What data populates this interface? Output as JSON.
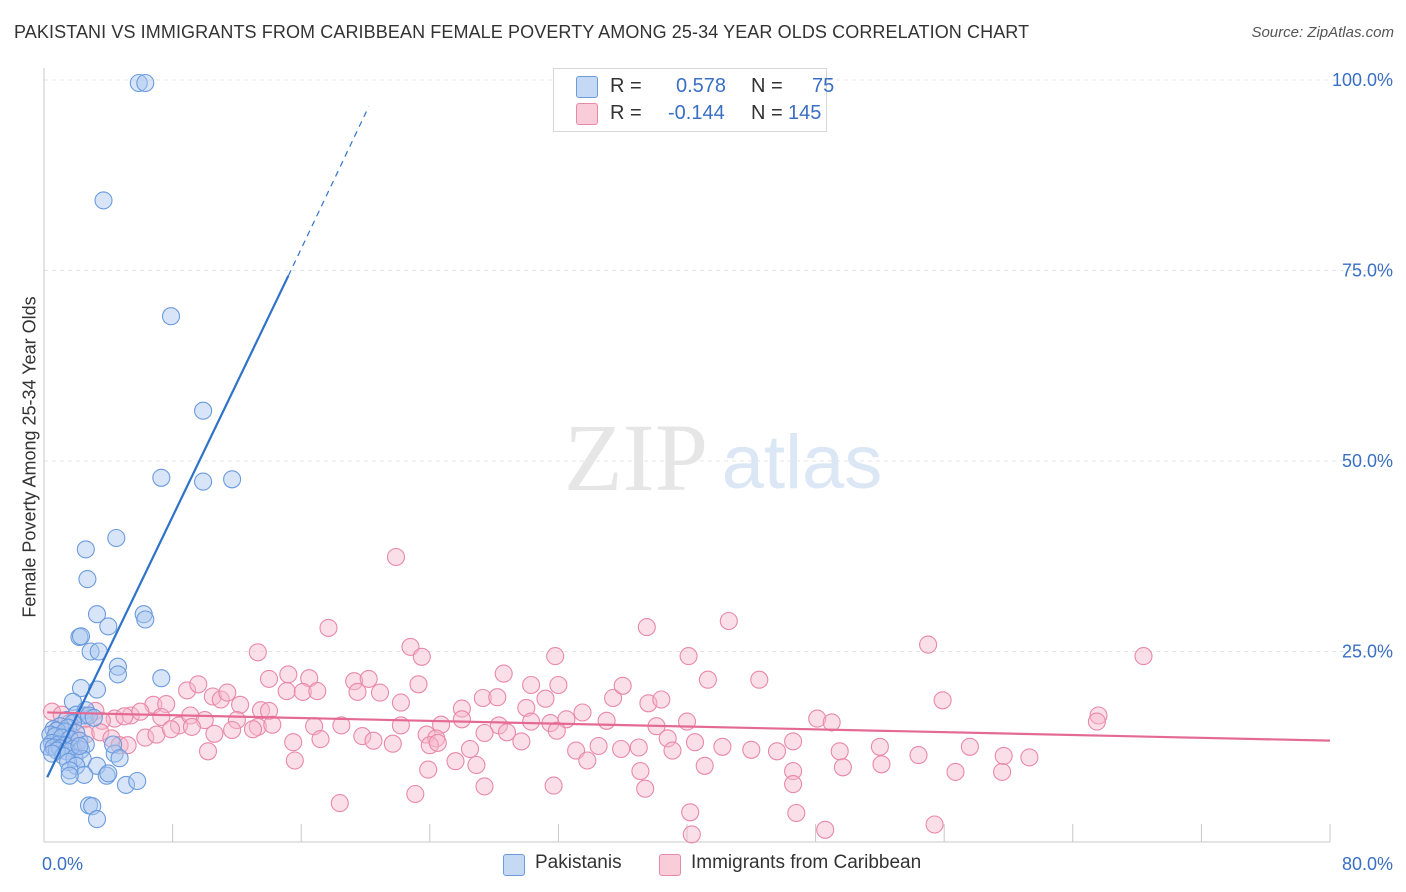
{
  "title": "PAKISTANI VS IMMIGRANTS FROM CARIBBEAN FEMALE POVERTY AMONG 25-34 YEAR OLDS CORRELATION CHART",
  "source": "Source: ZipAtlas.com",
  "watermark": {
    "zip": "ZIP",
    "atlas": "atlas"
  },
  "legend": {
    "r_label": "R =",
    "n_label": "N =",
    "series": [
      {
        "name": "Pakistanis",
        "r": "0.578",
        "n": "75",
        "color": "#a8c6ef",
        "stroke": "#6b9bdd"
      },
      {
        "name": "Immigrants from Caribbean",
        "r": "-0.144",
        "n": "145",
        "color": "#f6b8cb",
        "stroke": "#e889a8"
      }
    ]
  },
  "chart_data": {
    "type": "scatter",
    "title": "PAKISTANI VS IMMIGRANTS FROM CARIBBEAN FEMALE POVERTY AMONG 25-34 YEAR OLDS CORRELATION CHART",
    "xlabel": "",
    "ylabel": "Female Poverty Among 25-34 Year Olds",
    "xlim": [
      0,
      80
    ],
    "ylim": [
      0,
      100
    ],
    "x_tick_labels": [
      "0.0%",
      "80.0%"
    ],
    "y_tick_labels": [
      "25.0%",
      "50.0%",
      "75.0%",
      "100.0%"
    ],
    "y_ticks": [
      25,
      50,
      75,
      100
    ],
    "series": [
      {
        "name": "Pakistanis",
        "color": "#a8c6ef",
        "stroke": "#6b9bdd",
        "line_color": "#2f72c9",
        "trend": {
          "x0": 0.2,
          "y0": 8.5,
          "x1": 15.2,
          "y1": 74.3,
          "dash_to_x": 20.2,
          "dash_to_y": 96.5
        },
        "points": [
          [
            5.9,
            99.6
          ],
          [
            6.3,
            99.6
          ],
          [
            3.7,
            84.2
          ],
          [
            7.9,
            69.0
          ],
          [
            9.9,
            56.6
          ],
          [
            7.3,
            47.8
          ],
          [
            9.9,
            47.3
          ],
          [
            11.7,
            47.6
          ],
          [
            2.6,
            38.4
          ],
          [
            4.5,
            39.9
          ],
          [
            2.7,
            34.5
          ],
          [
            3.3,
            29.9
          ],
          [
            6.2,
            29.9
          ],
          [
            6.3,
            29.2
          ],
          [
            2.2,
            26.9
          ],
          [
            2.3,
            27.0
          ],
          [
            4.0,
            28.3
          ],
          [
            2.9,
            25.0
          ],
          [
            3.4,
            25.0
          ],
          [
            4.6,
            23.0
          ],
          [
            4.6,
            22.0
          ],
          [
            7.3,
            21.5
          ],
          [
            2.3,
            20.2
          ],
          [
            3.3,
            20.0
          ],
          [
            1.8,
            18.4
          ],
          [
            2.6,
            17.3
          ],
          [
            2.0,
            16.7
          ],
          [
            2.5,
            16.6
          ],
          [
            2.8,
            16.6
          ],
          [
            1.4,
            16.0
          ],
          [
            1.8,
            15.6
          ],
          [
            3.1,
            16.3
          ],
          [
            1.0,
            15.2
          ],
          [
            1.5,
            15.0
          ],
          [
            0.6,
            14.8
          ],
          [
            0.8,
            14.6
          ],
          [
            1.3,
            14.5
          ],
          [
            2.0,
            14.3
          ],
          [
            0.4,
            14.1
          ],
          [
            0.7,
            13.9
          ],
          [
            1.1,
            13.7
          ],
          [
            1.6,
            13.5
          ],
          [
            2.2,
            13.3
          ],
          [
            0.5,
            13.0
          ],
          [
            0.9,
            12.8
          ],
          [
            1.3,
            12.7
          ],
          [
            0.3,
            12.5
          ],
          [
            0.6,
            12.4
          ],
          [
            1.0,
            12.3
          ],
          [
            1.8,
            12.2
          ],
          [
            0.8,
            12.0
          ],
          [
            1.4,
            11.9
          ],
          [
            2.3,
            12.1
          ],
          [
            2.6,
            12.8
          ],
          [
            1.2,
            11.3
          ],
          [
            1.9,
            11.0
          ],
          [
            2.4,
            10.9
          ],
          [
            0.5,
            11.6
          ],
          [
            1.5,
            10.5
          ],
          [
            2.0,
            10.0
          ],
          [
            3.3,
            10.0
          ],
          [
            4.4,
            11.6
          ],
          [
            4.3,
            12.8
          ],
          [
            4.7,
            11.0
          ],
          [
            1.6,
            9.4
          ],
          [
            2.5,
            8.8
          ],
          [
            3.9,
            8.7
          ],
          [
            1.6,
            8.7
          ],
          [
            4.0,
            9.0
          ],
          [
            5.1,
            7.5
          ],
          [
            5.8,
            8.0
          ],
          [
            2.8,
            4.8
          ],
          [
            3.0,
            4.7
          ],
          [
            3.3,
            3.0
          ],
          [
            2.2,
            12.6
          ]
        ]
      },
      {
        "name": "Immigrants from Caribbean",
        "color": "#f6b8cb",
        "stroke": "#e889a8",
        "line_color": "#e46a95",
        "trend": {
          "x0": 0.2,
          "y0": 17.0,
          "x1": 80.0,
          "y1": 13.3
        },
        "points": [
          [
            21.9,
            37.4
          ],
          [
            22.8,
            25.6
          ],
          [
            17.7,
            28.1
          ],
          [
            37.5,
            28.2
          ],
          [
            42.6,
            29.0
          ],
          [
            55.0,
            25.9
          ],
          [
            68.4,
            24.4
          ],
          [
            13.3,
            24.9
          ],
          [
            23.5,
            24.3
          ],
          [
            31.8,
            24.4
          ],
          [
            40.1,
            24.4
          ],
          [
            14.0,
            21.4
          ],
          [
            15.2,
            22.0
          ],
          [
            16.5,
            21.5
          ],
          [
            19.3,
            21.1
          ],
          [
            20.2,
            21.4
          ],
          [
            23.3,
            20.7
          ],
          [
            28.6,
            22.1
          ],
          [
            30.3,
            20.6
          ],
          [
            41.3,
            21.3
          ],
          [
            44.5,
            21.3
          ],
          [
            3.2,
            17.2
          ],
          [
            4.4,
            16.2
          ],
          [
            5.4,
            16.6
          ],
          [
            6.8,
            18.0
          ],
          [
            7.6,
            18.1
          ],
          [
            8.9,
            19.9
          ],
          [
            9.6,
            20.7
          ],
          [
            10.5,
            19.1
          ],
          [
            11.0,
            18.7
          ],
          [
            11.4,
            19.6
          ],
          [
            12.2,
            18.0
          ],
          [
            13.5,
            17.3
          ],
          [
            14.0,
            17.2
          ],
          [
            15.1,
            19.8
          ],
          [
            16.1,
            19.7
          ],
          [
            17.0,
            19.8
          ],
          [
            19.5,
            19.7
          ],
          [
            22.2,
            18.3
          ],
          [
            26.0,
            17.5
          ],
          [
            27.3,
            18.9
          ],
          [
            28.2,
            19.0
          ],
          [
            30.0,
            17.6
          ],
          [
            31.2,
            18.8
          ],
          [
            32.0,
            20.6
          ],
          [
            35.4,
            18.9
          ],
          [
            36.0,
            20.5
          ],
          [
            37.6,
            18.2
          ],
          [
            38.4,
            18.7
          ],
          [
            55.9,
            18.6
          ],
          [
            33.5,
            17.0
          ],
          [
            20.9,
            19.6
          ],
          [
            0.5,
            17.1
          ],
          [
            1.1,
            16.7
          ],
          [
            1.6,
            15.6
          ],
          [
            2.5,
            16.1
          ],
          [
            3.6,
            15.9
          ],
          [
            5.0,
            16.5
          ],
          [
            6.0,
            17.1
          ],
          [
            7.3,
            16.4
          ],
          [
            8.4,
            15.3
          ],
          [
            9.1,
            16.6
          ],
          [
            10.0,
            16.0
          ],
          [
            12.0,
            16.0
          ],
          [
            13.3,
            15.1
          ],
          [
            14.2,
            15.4
          ],
          [
            16.8,
            15.2
          ],
          [
            18.5,
            15.3
          ],
          [
            22.2,
            15.3
          ],
          [
            24.7,
            15.4
          ],
          [
            26.0,
            16.1
          ],
          [
            28.3,
            15.3
          ],
          [
            30.3,
            15.8
          ],
          [
            31.5,
            15.6
          ],
          [
            32.5,
            16.1
          ],
          [
            35.0,
            15.9
          ],
          [
            38.1,
            15.2
          ],
          [
            40.0,
            15.8
          ],
          [
            48.1,
            16.2
          ],
          [
            49.0,
            15.7
          ],
          [
            65.6,
            16.6
          ],
          [
            65.5,
            15.8
          ],
          [
            0.8,
            14.7
          ],
          [
            1.4,
            14.4
          ],
          [
            1.8,
            13.8
          ],
          [
            2.6,
            14.1
          ],
          [
            3.5,
            14.4
          ],
          [
            4.2,
            13.6
          ],
          [
            4.7,
            12.7
          ],
          [
            6.3,
            13.7
          ],
          [
            7.0,
            14.1
          ],
          [
            7.9,
            14.8
          ],
          [
            9.2,
            15.1
          ],
          [
            10.6,
            14.2
          ],
          [
            11.7,
            14.7
          ],
          [
            13.0,
            14.8
          ],
          [
            15.5,
            13.1
          ],
          [
            17.2,
            13.5
          ],
          [
            19.8,
            13.9
          ],
          [
            20.5,
            13.3
          ],
          [
            21.7,
            12.9
          ],
          [
            23.8,
            14.1
          ],
          [
            24.4,
            13.6
          ],
          [
            27.4,
            14.3
          ],
          [
            28.8,
            14.4
          ],
          [
            29.7,
            13.2
          ],
          [
            31.9,
            14.6
          ],
          [
            33.1,
            12.0
          ],
          [
            34.5,
            12.6
          ],
          [
            35.9,
            12.2
          ],
          [
            37.0,
            12.4
          ],
          [
            38.8,
            13.6
          ],
          [
            39.1,
            12.0
          ],
          [
            40.5,
            13.1
          ],
          [
            42.2,
            12.5
          ],
          [
            44.0,
            12.1
          ],
          [
            45.6,
            11.9
          ],
          [
            46.6,
            13.2
          ],
          [
            49.5,
            11.9
          ],
          [
            52.0,
            12.5
          ],
          [
            57.6,
            12.5
          ],
          [
            0.6,
            12.4
          ],
          [
            2.0,
            12.5
          ],
          [
            5.2,
            12.7
          ],
          [
            10.2,
            11.9
          ],
          [
            24.0,
            12.7
          ],
          [
            26.5,
            12.2
          ],
          [
            15.6,
            10.7
          ],
          [
            23.9,
            9.5
          ],
          [
            25.6,
            10.6
          ],
          [
            26.9,
            10.1
          ],
          [
            33.8,
            10.7
          ],
          [
            37.1,
            9.3
          ],
          [
            41.1,
            10.0
          ],
          [
            46.6,
            9.3
          ],
          [
            49.7,
            9.8
          ],
          [
            52.1,
            10.2
          ],
          [
            54.4,
            11.4
          ],
          [
            56.7,
            9.2
          ],
          [
            59.6,
            9.2
          ],
          [
            59.7,
            11.3
          ],
          [
            61.3,
            11.1
          ],
          [
            27.4,
            7.3
          ],
          [
            31.7,
            7.4
          ],
          [
            37.4,
            7.0
          ],
          [
            46.6,
            7.6
          ],
          [
            18.4,
            5.1
          ],
          [
            23.1,
            6.3
          ],
          [
            40.2,
            3.9
          ],
          [
            46.8,
            3.8
          ],
          [
            40.3,
            1.0
          ],
          [
            48.6,
            1.6
          ],
          [
            55.4,
            2.3
          ],
          [
            24.5,
            13.0
          ]
        ]
      }
    ]
  }
}
